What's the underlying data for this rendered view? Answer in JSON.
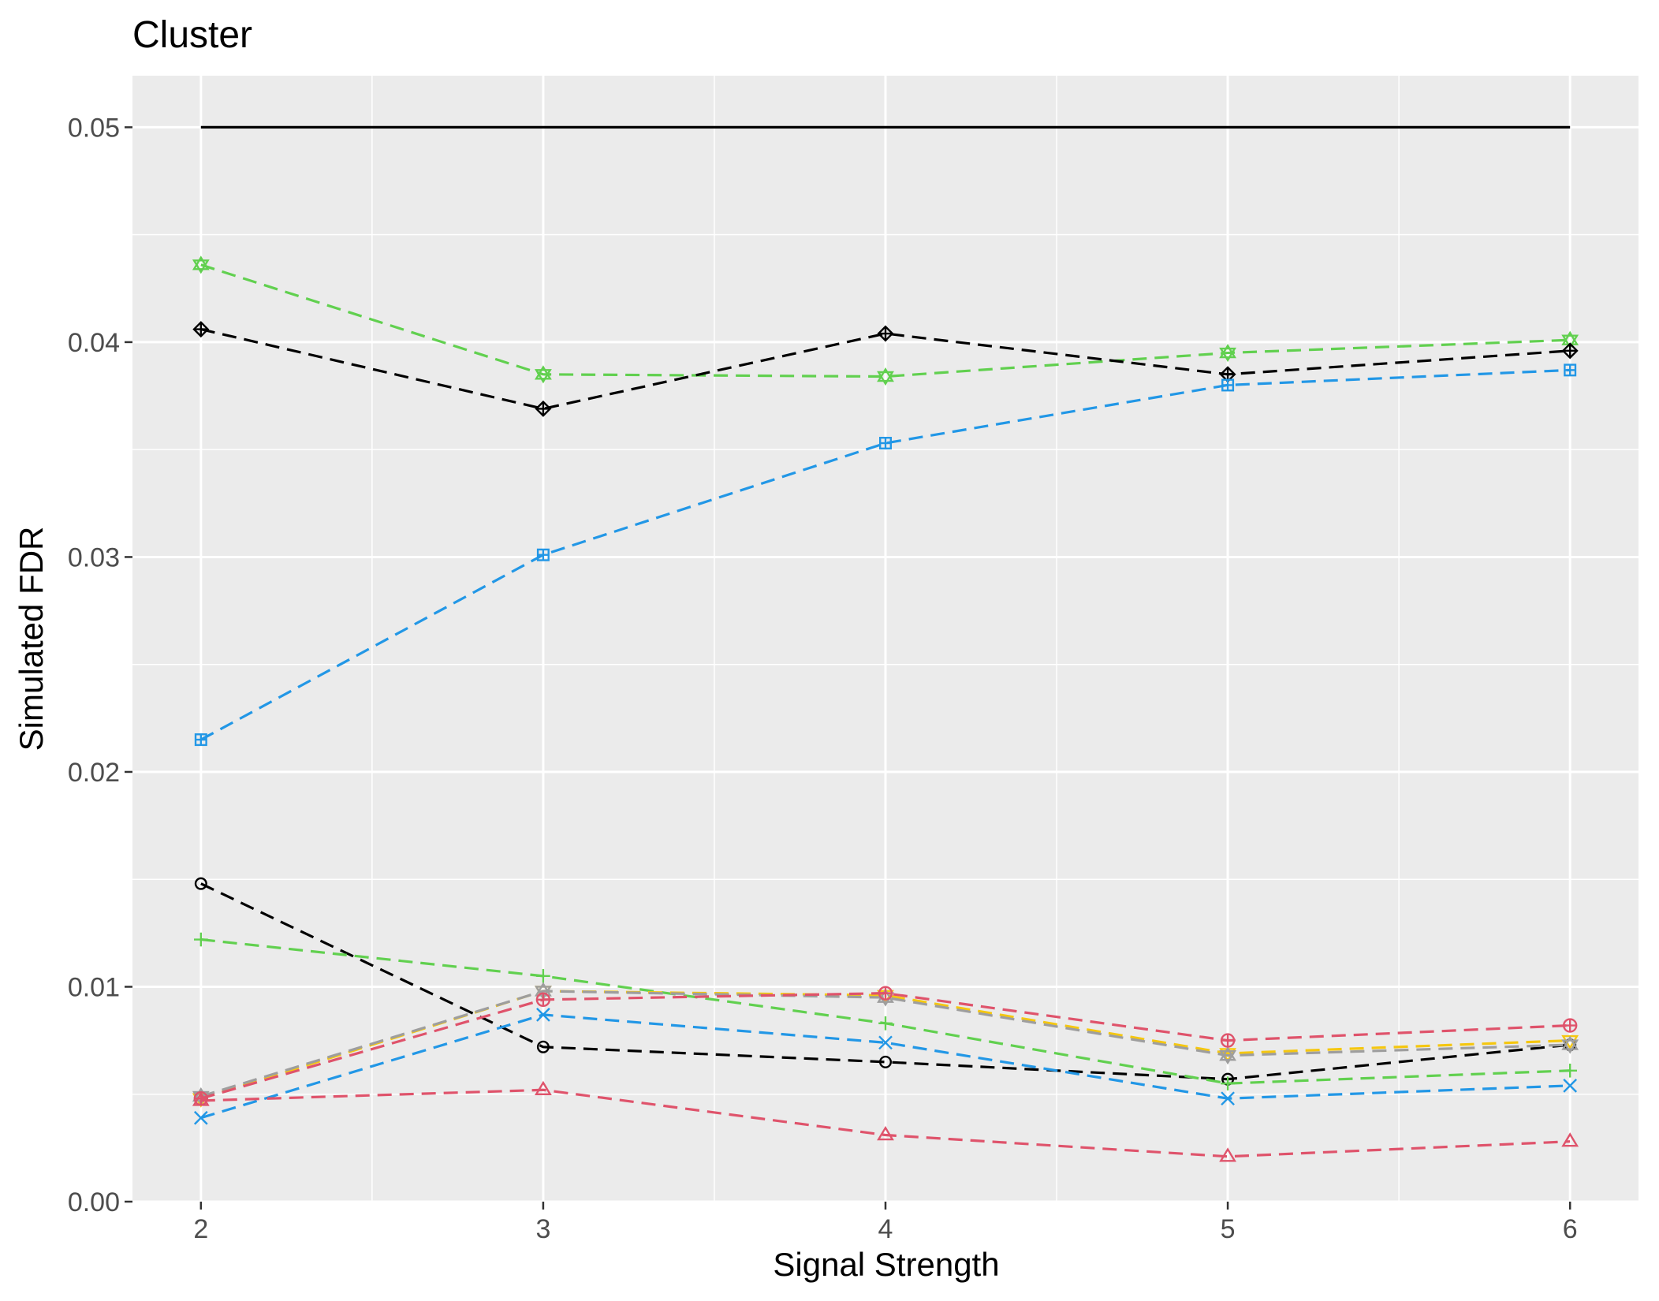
{
  "chart_data": {
    "type": "line",
    "title": "Cluster",
    "xlabel": "Signal Strength",
    "ylabel": "Simulated FDR",
    "x": [
      2,
      3,
      4,
      5,
      6
    ],
    "xlim": [
      1.8,
      6.2
    ],
    "ylim": [
      0,
      0.0524
    ],
    "xticks": [
      "2",
      "3",
      "4",
      "5",
      "6"
    ],
    "yticks": [
      {
        "value": 0.0,
        "label": "0.00"
      },
      {
        "value": 0.01,
        "label": "0.01"
      },
      {
        "value": 0.02,
        "label": "0.02"
      },
      {
        "value": 0.03,
        "label": "0.03"
      },
      {
        "value": 0.04,
        "label": "0.04"
      },
      {
        "value": 0.05,
        "label": "0.05"
      }
    ],
    "grid": true,
    "background": "#ebebeb",
    "reference_line": {
      "value": 0.05,
      "color": "#000000"
    },
    "series": [
      {
        "name": "green-star",
        "color": "#61d04f",
        "marker": "star",
        "values": [
          0.0436,
          0.0385,
          0.0384,
          0.0395,
          0.0401
        ]
      },
      {
        "name": "black-diamond",
        "color": "#000000",
        "marker": "diamond-plus",
        "values": [
          0.0406,
          0.0369,
          0.0404,
          0.0385,
          0.0396
        ]
      },
      {
        "name": "blue-square",
        "color": "#2297e6",
        "marker": "square-plus",
        "values": [
          0.0215,
          0.0301,
          0.0353,
          0.038,
          0.0387
        ]
      },
      {
        "name": "black-circle",
        "color": "#000000",
        "marker": "circle",
        "values": [
          0.0148,
          0.0072,
          0.0065,
          0.0057,
          0.0073
        ]
      },
      {
        "name": "green-plus",
        "color": "#61d04f",
        "marker": "plus",
        "values": [
          0.0122,
          0.0105,
          0.0083,
          0.0055,
          0.0061
        ]
      },
      {
        "name": "gold-triangle-down",
        "color": "#f5c710",
        "marker": "triangle-down",
        "values": [
          0.0048,
          0.0098,
          0.0096,
          0.0069,
          0.0075
        ]
      },
      {
        "name": "gray-star",
        "color": "#9e9e9e",
        "marker": "star",
        "values": [
          0.0049,
          0.0098,
          0.0095,
          0.0068,
          0.0073
        ]
      },
      {
        "name": "pink-circle-plus",
        "color": "#df536b",
        "marker": "circle-plus",
        "values": [
          0.0048,
          0.0094,
          0.0097,
          0.0075,
          0.0082
        ]
      },
      {
        "name": "blue-cross",
        "color": "#2297e6",
        "marker": "cross",
        "values": [
          0.0039,
          0.0087,
          0.0074,
          0.0048,
          0.0054
        ]
      },
      {
        "name": "pink-triangle",
        "color": "#df536b",
        "marker": "triangle",
        "values": [
          0.0047,
          0.0052,
          0.0031,
          0.0021,
          0.0028
        ]
      }
    ]
  }
}
